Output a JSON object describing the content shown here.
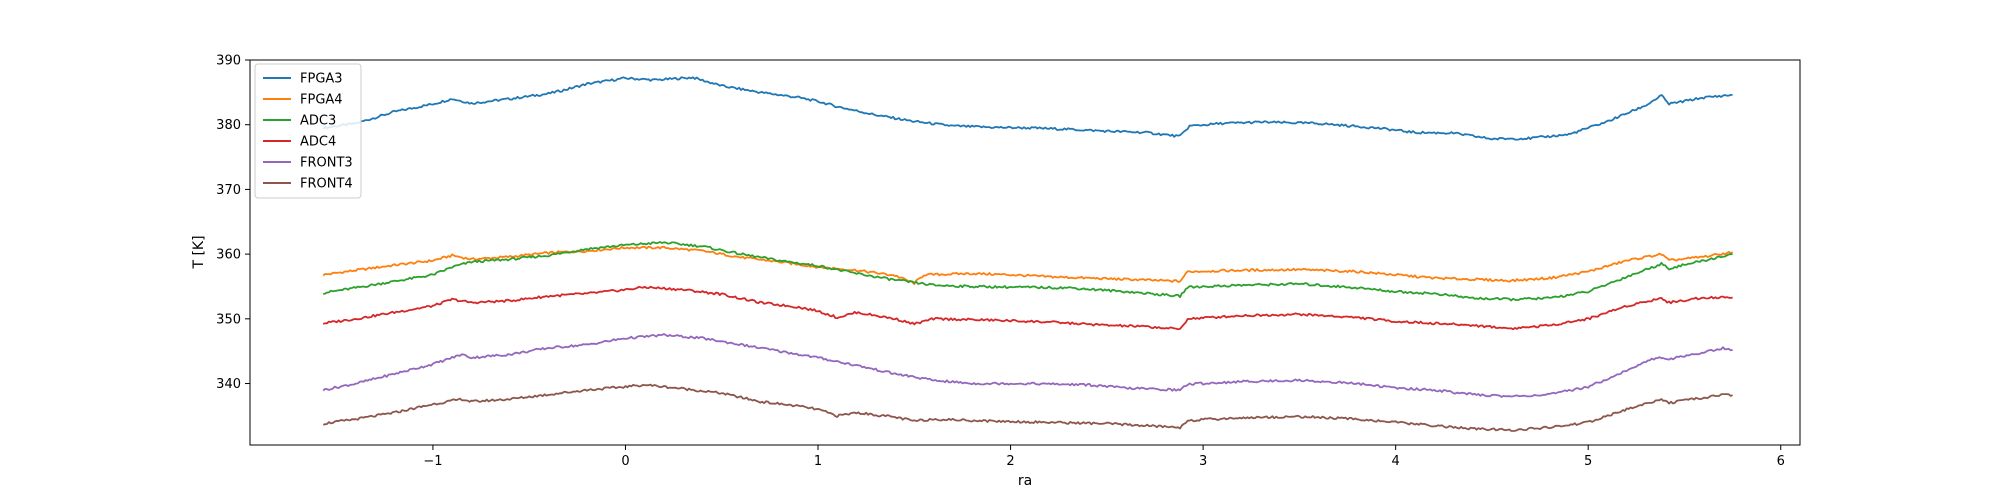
{
  "chart_data": {
    "type": "line",
    "xlabel": "ra",
    "ylabel": "T [K]",
    "xlim": [
      -1.95,
      6.1
    ],
    "ylim": [
      330.5,
      390
    ],
    "xticks": [
      -1,
      0,
      1,
      2,
      3,
      4,
      5,
      6
    ],
    "xtick_labels": [
      "−1",
      "0",
      "1",
      "2",
      "3",
      "4",
      "5",
      "6"
    ],
    "yticks": [
      340,
      350,
      360,
      370,
      380,
      390
    ],
    "ytick_labels": [
      "340",
      "350",
      "360",
      "370",
      "380",
      "390"
    ],
    "grid": false,
    "legend_position": "top-left",
    "series": [
      {
        "name": "FPGA3",
        "color": "#1f77b4",
        "points": [
          [
            -1.57,
            379.5
          ],
          [
            -1.4,
            380.2
          ],
          [
            -1.2,
            382.0
          ],
          [
            -1.0,
            383.2
          ],
          [
            -0.9,
            384.0
          ],
          [
            -0.8,
            383.3
          ],
          [
            -0.6,
            384.0
          ],
          [
            -0.4,
            384.8
          ],
          [
            -0.3,
            385.5
          ],
          [
            -0.2,
            386.3
          ],
          [
            0.0,
            387.2
          ],
          [
            0.15,
            386.9
          ],
          [
            0.35,
            387.3
          ],
          [
            0.5,
            386.0
          ],
          [
            0.7,
            385.0
          ],
          [
            0.9,
            384.2
          ],
          [
            1.0,
            383.6
          ],
          [
            1.1,
            382.8
          ],
          [
            1.3,
            381.5
          ],
          [
            1.5,
            380.5
          ],
          [
            1.7,
            379.8
          ],
          [
            1.9,
            379.6
          ],
          [
            2.1,
            379.5
          ],
          [
            2.3,
            379.3
          ],
          [
            2.5,
            379.0
          ],
          [
            2.7,
            378.8
          ],
          [
            2.88,
            378.2
          ],
          [
            2.93,
            379.8
          ],
          [
            3.1,
            380.2
          ],
          [
            3.3,
            380.4
          ],
          [
            3.6,
            380.2
          ],
          [
            3.9,
            379.5
          ],
          [
            4.1,
            378.8
          ],
          [
            4.3,
            378.7
          ],
          [
            4.5,
            377.8
          ],
          [
            4.7,
            377.9
          ],
          [
            4.9,
            378.5
          ],
          [
            5.1,
            380.5
          ],
          [
            5.3,
            383.0
          ],
          [
            5.38,
            384.5
          ],
          [
            5.42,
            383.2
          ],
          [
            5.6,
            384.2
          ],
          [
            5.75,
            384.6
          ]
        ]
      },
      {
        "name": "FPGA4",
        "color": "#ff7f0e",
        "points": [
          [
            -1.57,
            356.8
          ],
          [
            -1.4,
            357.5
          ],
          [
            -1.2,
            358.3
          ],
          [
            -1.0,
            359.0
          ],
          [
            -0.9,
            359.8
          ],
          [
            -0.8,
            359.2
          ],
          [
            -0.6,
            359.6
          ],
          [
            -0.4,
            360.2
          ],
          [
            -0.2,
            360.5
          ],
          [
            0.0,
            361.0
          ],
          [
            0.2,
            361.0
          ],
          [
            0.4,
            360.5
          ],
          [
            0.6,
            359.5
          ],
          [
            0.8,
            358.8
          ],
          [
            1.0,
            358.0
          ],
          [
            1.2,
            357.5
          ],
          [
            1.4,
            356.7
          ],
          [
            1.5,
            355.5
          ],
          [
            1.55,
            356.8
          ],
          [
            1.8,
            357.0
          ],
          [
            2.0,
            356.8
          ],
          [
            2.2,
            356.5
          ],
          [
            2.5,
            356.2
          ],
          [
            2.7,
            356.0
          ],
          [
            2.88,
            355.8
          ],
          [
            2.92,
            357.3
          ],
          [
            3.2,
            357.5
          ],
          [
            3.5,
            357.6
          ],
          [
            3.8,
            357.3
          ],
          [
            4.0,
            356.8
          ],
          [
            4.2,
            356.3
          ],
          [
            4.4,
            356.1
          ],
          [
            4.6,
            355.9
          ],
          [
            4.8,
            356.3
          ],
          [
            5.0,
            357.3
          ],
          [
            5.2,
            359.0
          ],
          [
            5.38,
            360.0
          ],
          [
            5.42,
            359.0
          ],
          [
            5.6,
            359.6
          ],
          [
            5.75,
            360.3
          ]
        ]
      },
      {
        "name": "ADC3",
        "color": "#2ca02c",
        "points": [
          [
            -1.57,
            354.0
          ],
          [
            -1.4,
            354.8
          ],
          [
            -1.2,
            355.8
          ],
          [
            -1.0,
            356.8
          ],
          [
            -0.9,
            358.0
          ],
          [
            -0.8,
            358.8
          ],
          [
            -0.6,
            359.2
          ],
          [
            -0.4,
            359.8
          ],
          [
            -0.2,
            360.8
          ],
          [
            0.0,
            361.4
          ],
          [
            0.2,
            361.8
          ],
          [
            0.4,
            361.2
          ],
          [
            0.6,
            360.0
          ],
          [
            0.8,
            359.0
          ],
          [
            1.0,
            358.2
          ],
          [
            1.2,
            357.0
          ],
          [
            1.4,
            356.0
          ],
          [
            1.6,
            355.2
          ],
          [
            1.8,
            355.0
          ],
          [
            2.0,
            354.9
          ],
          [
            2.3,
            354.8
          ],
          [
            2.6,
            354.2
          ],
          [
            2.88,
            353.5
          ],
          [
            2.92,
            354.9
          ],
          [
            3.2,
            355.2
          ],
          [
            3.5,
            355.4
          ],
          [
            3.8,
            354.8
          ],
          [
            4.0,
            354.2
          ],
          [
            4.2,
            353.9
          ],
          [
            4.4,
            353.2
          ],
          [
            4.6,
            353.0
          ],
          [
            4.8,
            353.2
          ],
          [
            5.0,
            354.2
          ],
          [
            5.2,
            356.5
          ],
          [
            5.38,
            358.5
          ],
          [
            5.42,
            357.8
          ],
          [
            5.6,
            359.0
          ],
          [
            5.75,
            360.0
          ]
        ]
      },
      {
        "name": "ADC4",
        "color": "#d62728",
        "points": [
          [
            -1.57,
            349.3
          ],
          [
            -1.4,
            350.0
          ],
          [
            -1.2,
            351.0
          ],
          [
            -1.0,
            352.0
          ],
          [
            -0.9,
            353.0
          ],
          [
            -0.8,
            352.5
          ],
          [
            -0.6,
            352.8
          ],
          [
            -0.4,
            353.5
          ],
          [
            -0.2,
            353.9
          ],
          [
            0.0,
            354.5
          ],
          [
            0.1,
            354.9
          ],
          [
            0.3,
            354.5
          ],
          [
            0.5,
            353.8
          ],
          [
            0.7,
            352.5
          ],
          [
            0.9,
            351.8
          ],
          [
            1.0,
            351.2
          ],
          [
            1.1,
            350.2
          ],
          [
            1.2,
            351.0
          ],
          [
            1.4,
            350.0
          ],
          [
            1.5,
            349.2
          ],
          [
            1.6,
            350.0
          ],
          [
            1.9,
            349.8
          ],
          [
            2.2,
            349.5
          ],
          [
            2.5,
            349.0
          ],
          [
            2.7,
            348.8
          ],
          [
            2.88,
            348.4
          ],
          [
            2.92,
            350.0
          ],
          [
            3.2,
            350.5
          ],
          [
            3.5,
            350.7
          ],
          [
            3.8,
            350.2
          ],
          [
            4.0,
            349.6
          ],
          [
            4.2,
            349.3
          ],
          [
            4.4,
            349.0
          ],
          [
            4.6,
            348.5
          ],
          [
            4.8,
            349.0
          ],
          [
            5.0,
            350.0
          ],
          [
            5.2,
            352.0
          ],
          [
            5.38,
            353.2
          ],
          [
            5.42,
            352.5
          ],
          [
            5.6,
            353.3
          ],
          [
            5.75,
            353.3
          ]
        ]
      },
      {
        "name": "FRONT3",
        "color": "#9467bd",
        "points": [
          [
            -1.57,
            339.0
          ],
          [
            -1.4,
            340.0
          ],
          [
            -1.2,
            341.5
          ],
          [
            -1.0,
            343.0
          ],
          [
            -0.85,
            344.5
          ],
          [
            -0.8,
            344.0
          ],
          [
            -0.6,
            344.5
          ],
          [
            -0.4,
            345.5
          ],
          [
            -0.2,
            346.0
          ],
          [
            0.0,
            347.0
          ],
          [
            0.2,
            347.5
          ],
          [
            0.4,
            347.0
          ],
          [
            0.6,
            346.0
          ],
          [
            0.8,
            345.0
          ],
          [
            1.0,
            344.0
          ],
          [
            1.2,
            342.8
          ],
          [
            1.4,
            341.5
          ],
          [
            1.6,
            340.5
          ],
          [
            1.8,
            340.0
          ],
          [
            2.1,
            340.0
          ],
          [
            2.4,
            339.8
          ],
          [
            2.6,
            339.3
          ],
          [
            2.88,
            339.0
          ],
          [
            2.92,
            339.9
          ],
          [
            3.2,
            340.3
          ],
          [
            3.5,
            340.5
          ],
          [
            3.8,
            340.0
          ],
          [
            4.0,
            339.3
          ],
          [
            4.2,
            339.0
          ],
          [
            4.4,
            338.3
          ],
          [
            4.6,
            338.0
          ],
          [
            4.8,
            338.3
          ],
          [
            5.0,
            339.5
          ],
          [
            5.2,
            342.0
          ],
          [
            5.35,
            344.0
          ],
          [
            5.42,
            343.8
          ],
          [
            5.6,
            344.8
          ],
          [
            5.7,
            345.5
          ],
          [
            5.75,
            345.2
          ]
        ]
      },
      {
        "name": "FRONT4",
        "color": "#8c564b",
        "points": [
          [
            -1.57,
            333.8
          ],
          [
            -1.4,
            334.5
          ],
          [
            -1.2,
            335.5
          ],
          [
            -1.0,
            336.8
          ],
          [
            -0.85,
            337.6
          ],
          [
            -0.8,
            337.2
          ],
          [
            -0.6,
            337.6
          ],
          [
            -0.4,
            338.3
          ],
          [
            -0.2,
            339.0
          ],
          [
            0.0,
            339.5
          ],
          [
            0.1,
            339.8
          ],
          [
            0.3,
            339.2
          ],
          [
            0.5,
            338.5
          ],
          [
            0.7,
            337.2
          ],
          [
            0.9,
            336.5
          ],
          [
            1.0,
            336.0
          ],
          [
            1.1,
            335.0
          ],
          [
            1.2,
            335.5
          ],
          [
            1.4,
            334.8
          ],
          [
            1.5,
            334.2
          ],
          [
            1.6,
            334.5
          ],
          [
            1.9,
            334.2
          ],
          [
            2.2,
            334.0
          ],
          [
            2.5,
            333.8
          ],
          [
            2.7,
            333.5
          ],
          [
            2.88,
            333.2
          ],
          [
            2.92,
            334.3
          ],
          [
            3.2,
            334.7
          ],
          [
            3.5,
            334.9
          ],
          [
            3.8,
            334.5
          ],
          [
            4.0,
            334.0
          ],
          [
            4.2,
            333.5
          ],
          [
            4.4,
            333.0
          ],
          [
            4.6,
            332.8
          ],
          [
            4.8,
            333.2
          ],
          [
            5.0,
            334.0
          ],
          [
            5.2,
            336.0
          ],
          [
            5.38,
            337.6
          ],
          [
            5.42,
            337.0
          ],
          [
            5.6,
            337.8
          ],
          [
            5.7,
            338.3
          ],
          [
            5.75,
            338.2
          ]
        ]
      }
    ]
  }
}
